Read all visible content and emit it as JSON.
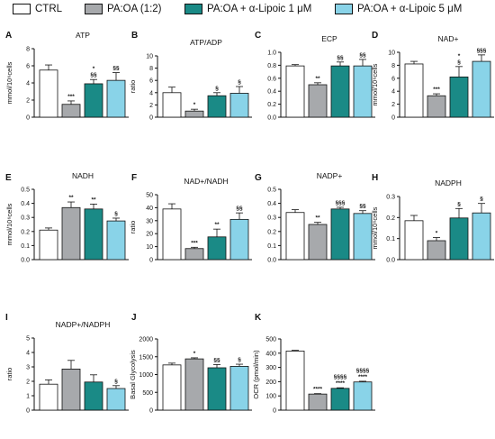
{
  "legend": {
    "items": [
      {
        "label": "CTRL",
        "color": "#ffffff"
      },
      {
        "label": "PA:OA (1:2)",
        "color": "#a7a9ac"
      },
      {
        "label": "PA:OA + α-Lipoic 1 μM",
        "color": "#1a8a86"
      },
      {
        "label": "PA:OA + α-Lipoic 5 μM",
        "color": "#89d3e8"
      }
    ]
  },
  "colors": {
    "ctrl": "#ffffff",
    "paoa": "#a7a9ac",
    "lipoic1": "#1a8a86",
    "lipoic5": "#89d3e8",
    "stroke": "#111111"
  },
  "chart_data": [
    {
      "panel": "A",
      "type": "bar",
      "title": "ATP",
      "ylabel": "mmol/10⁶cells",
      "ylim": [
        0,
        8
      ],
      "ticks": [
        "0",
        "2",
        "4",
        "6",
        "8"
      ],
      "series": [
        {
          "values": [
            5.5,
            1.5,
            3.9,
            4.3
          ]
        }
      ],
      "errors": [
        0.6,
        0.4,
        0.5,
        0.9
      ],
      "annotations": [
        "",
        "***",
        "*\n§§",
        "§§"
      ]
    },
    {
      "panel": "B",
      "type": "bar",
      "title": "ATP/ADP",
      "ylabel": "ratio",
      "ylim": [
        0,
        10
      ],
      "ticks": [
        "0",
        "2",
        "4",
        "6",
        "8",
        "10"
      ],
      "series": [
        {
          "values": [
            4.0,
            1.0,
            3.5,
            3.9
          ]
        }
      ],
      "errors": [
        0.9,
        0.3,
        0.5,
        1.1
      ],
      "annotations": [
        "",
        "*",
        "§",
        "§"
      ]
    },
    {
      "panel": "C",
      "type": "bar",
      "title": "ECP",
      "ylabel": "",
      "ylim": [
        0,
        1.0
      ],
      "ticks": [
        "0.0",
        "0.2",
        "0.4",
        "0.6",
        "0.8",
        "1.0"
      ],
      "series": [
        {
          "values": [
            0.79,
            0.5,
            0.79,
            0.79
          ]
        }
      ],
      "errors": [
        0.02,
        0.03,
        0.06,
        0.1
      ],
      "annotations": [
        "",
        "**",
        "§§",
        "§§"
      ]
    },
    {
      "panel": "D",
      "type": "bar",
      "title": "NAD+",
      "ylabel": "mmol/10⁶cells",
      "ylim": [
        0,
        10
      ],
      "ticks": [
        "0",
        "2",
        "4",
        "6",
        "8",
        "10"
      ],
      "series": [
        {
          "values": [
            8.2,
            3.3,
            6.2,
            8.6
          ]
        }
      ],
      "errors": [
        0.4,
        0.3,
        1.6,
        1.0
      ],
      "annotations": [
        "",
        "***",
        "*\n§",
        "§§§"
      ]
    },
    {
      "panel": "E",
      "type": "bar",
      "title": "NADH",
      "ylabel": "mmol/10⁶cells",
      "ylim": [
        0,
        0.5
      ],
      "ticks": [
        "0.0",
        "0.1",
        "0.2",
        "0.3",
        "0.4",
        "0.5"
      ],
      "series": [
        {
          "values": [
            0.21,
            0.37,
            0.36,
            0.275
          ]
        }
      ],
      "errors": [
        0.015,
        0.04,
        0.035,
        0.02
      ],
      "annotations": [
        "",
        "**",
        "**",
        "§"
      ]
    },
    {
      "panel": "F",
      "type": "bar",
      "title": "NAD+/NADH",
      "ylabel": "ratio",
      "ylim": [
        0,
        50
      ],
      "ticks": [
        "0",
        "10",
        "20",
        "30",
        "40",
        "50"
      ],
      "series": [
        {
          "values": [
            39,
            8.5,
            17.5,
            31
          ]
        }
      ],
      "errors": [
        4,
        1,
        6,
        5
      ],
      "annotations": [
        "",
        "***",
        "**",
        "§§"
      ]
    },
    {
      "panel": "G",
      "type": "bar",
      "title": "NADP+",
      "ylabel": "",
      "ylim": [
        0,
        0.5
      ],
      "ticks": [
        "0.0",
        "0.1",
        "0.2",
        "0.3",
        "0.4",
        "0.5"
      ],
      "series": [
        {
          "values": [
            0.335,
            0.25,
            0.36,
            0.328
          ]
        }
      ],
      "errors": [
        0.02,
        0.015,
        0.012,
        0.02
      ],
      "annotations": [
        "",
        "**",
        "§§§",
        "§§"
      ]
    },
    {
      "panel": "H",
      "type": "bar",
      "title": "NADPH",
      "ylabel": "mmol/10⁶cells",
      "ylim": [
        0,
        0.3
      ],
      "ticks": [
        "0.0",
        "0.1",
        "0.2",
        "0.3"
      ],
      "series": [
        {
          "values": [
            0.185,
            0.09,
            0.198,
            0.222
          ]
        }
      ],
      "errors": [
        0.025,
        0.015,
        0.045,
        0.045
      ],
      "annotations": [
        "",
        "*",
        "§",
        "§"
      ]
    },
    {
      "panel": "I",
      "type": "bar",
      "title": "NADP+/NADPH",
      "ylabel": "ratio",
      "ylim": [
        0,
        5
      ],
      "ticks": [
        "0",
        "1",
        "2",
        "3",
        "4",
        "5"
      ],
      "series": [
        {
          "values": [
            1.8,
            2.85,
            1.95,
            1.5
          ]
        }
      ],
      "errors": [
        0.3,
        0.6,
        0.5,
        0.2
      ],
      "annotations": [
        "",
        "",
        "",
        "§"
      ]
    },
    {
      "panel": "J",
      "type": "bar",
      "title": "",
      "ylabel": "Basal Glycolysis",
      "ylim": [
        0,
        2000
      ],
      "ticks": [
        "0",
        "500",
        "1000",
        "1500",
        "2000"
      ],
      "series": [
        {
          "values": [
            1270,
            1440,
            1190,
            1230
          ]
        }
      ],
      "errors": [
        50,
        30,
        90,
        60
      ],
      "annotations": [
        "",
        "*",
        "§§",
        "§"
      ]
    },
    {
      "panel": "K",
      "type": "bar",
      "title": "",
      "ylabel": "OCR (pmol/min)",
      "ylim": [
        0,
        500
      ],
      "ticks": [
        "0",
        "100",
        "200",
        "300",
        "400",
        "500"
      ],
      "series": [
        {
          "values": [
            415,
            113,
            153,
            198
          ]
        }
      ],
      "errors": [
        5,
        3,
        4,
        5
      ],
      "annotations": [
        "",
        "****",
        "§§§§\n****",
        "§§§§\n****"
      ]
    }
  ]
}
